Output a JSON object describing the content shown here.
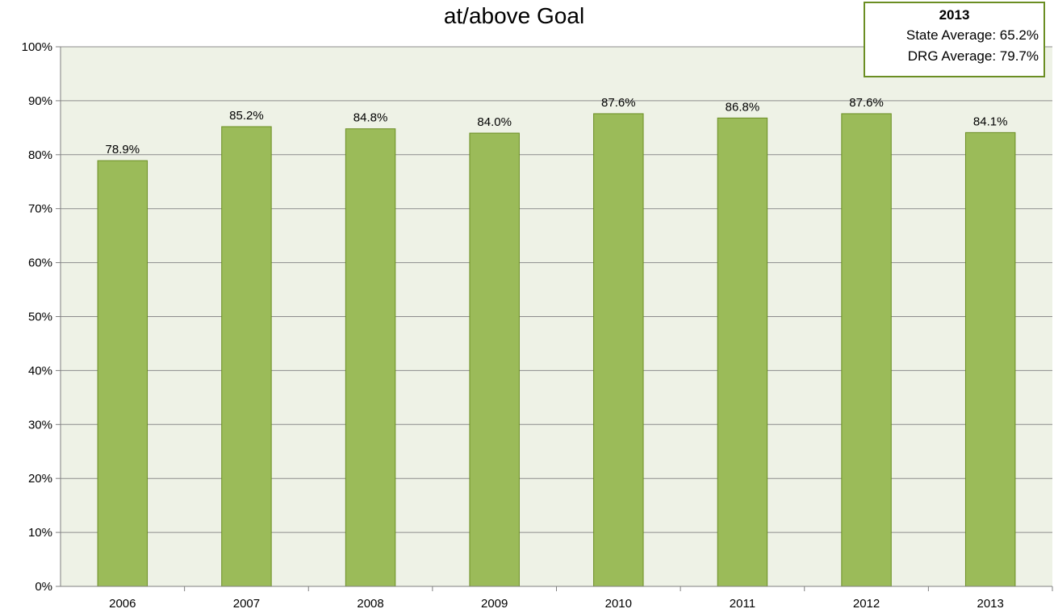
{
  "chart_data": {
    "type": "bar",
    "title": "at/above Goal",
    "categories": [
      "2006",
      "2007",
      "2008",
      "2009",
      "2010",
      "2011",
      "2012",
      "2013"
    ],
    "series": [
      {
        "values": [
          78.9,
          85.2,
          84.8,
          84.0,
          87.6,
          86.8,
          87.6,
          84.1
        ],
        "labels": [
          "78.9%",
          "85.2%",
          "84.8%",
          "84.0%",
          "87.6%",
          "86.8%",
          "87.6%",
          "84.1%"
        ]
      }
    ],
    "ylim": [
      0,
      100
    ],
    "yticks": [
      0,
      10,
      20,
      30,
      40,
      50,
      60,
      70,
      80,
      90,
      100
    ],
    "ytick_labels": [
      "0%",
      "10%",
      "20%",
      "30%",
      "40%",
      "50%",
      "60%",
      "70%",
      "80%",
      "90%",
      "100%"
    ],
    "xlabel": "",
    "ylabel": "",
    "grid": true,
    "legend": "none",
    "colors": {
      "bar_fill": "#9bbb59",
      "bar_stroke": "#6b8e23",
      "plot_background": "#eef2e6",
      "gridline": "#8c8c8c"
    }
  },
  "info_box": {
    "title": "2013",
    "rows": [
      {
        "text": "State Average:  65.2%"
      },
      {
        "text": "DRG Average:  79.7%"
      }
    ]
  }
}
